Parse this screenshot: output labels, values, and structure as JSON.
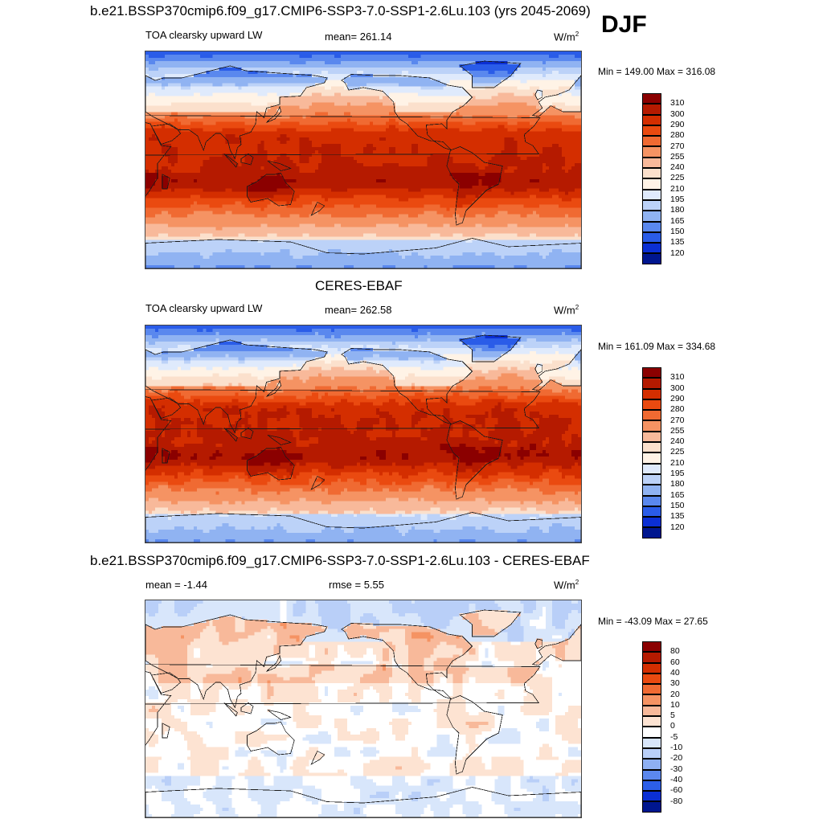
{
  "season": "DJF",
  "panels": [
    {
      "heading": "b.e21.BSSP370cmip6.f09_g17.CMIP6-SSP3-7.0-SSP1-2.6Lu.103 (yrs 2045-2069)",
      "left_label": "TOA clearsky upward LW",
      "center_label": "mean= 261.14",
      "units": "W/m",
      "units_sup": "2",
      "minmax": "Min = 149.00 Max = 316.08",
      "mean": 261.14,
      "min": 149.0,
      "max": 316.08,
      "kind": "model"
    },
    {
      "heading": "CERES-EBAF",
      "left_label": "TOA clearsky upward LW",
      "center_label": "mean= 262.58",
      "units": "W/m",
      "units_sup": "2",
      "minmax": "Min = 161.09 Max = 334.68",
      "mean": 262.58,
      "min": 161.09,
      "max": 334.68,
      "kind": "obs"
    },
    {
      "heading": "b.e21.BSSP370cmip6.f09_g17.CMIP6-SSP3-7.0-SSP1-2.6Lu.103 - CERES-EBAF",
      "left_label": "mean =  -1.44",
      "center_label": "rmse =   5.55",
      "units": "W/m",
      "units_sup": "2",
      "minmax": "Min = -43.09 Max =  27.65",
      "mean": -1.44,
      "rmse": 5.55,
      "min": -43.09,
      "max": 27.65,
      "kind": "diff"
    }
  ],
  "colorbars": {
    "abs_levels": [
      "310",
      "300",
      "290",
      "280",
      "270",
      "255",
      "240",
      "225",
      "210",
      "195",
      "180",
      "165",
      "150",
      "135",
      "120"
    ],
    "abs_colors": [
      "#8b0000",
      "#b51a00",
      "#d42e00",
      "#ea4a10",
      "#f06a32",
      "#f59363",
      "#f8b99a",
      "#fbe0cc",
      "#fff3e6",
      "#dfeafc",
      "#bcd2f8",
      "#90b3f2",
      "#5a88ee",
      "#2a5ce8",
      "#0b2fd4",
      "#00168f"
    ],
    "diff_levels": [
      "80",
      "60",
      "40",
      "30",
      "20",
      "10",
      "5",
      "0",
      "-5",
      "-10",
      "-20",
      "-30",
      "-40",
      "-60",
      "-80"
    ],
    "diff_colors": [
      "#8b0000",
      "#b51a00",
      "#d42e00",
      "#ea4a10",
      "#f06a32",
      "#f59363",
      "#f8b99a",
      "#fde3d2",
      "#ffffff",
      "#d8e6fb",
      "#b9cff8",
      "#8eb0f3",
      "#5c88ee",
      "#2c5ee8",
      "#0b2fd4",
      "#00168f"
    ]
  },
  "chart_data": [
    {
      "type": "heatmap",
      "title": "b.e21.BSSP370cmip6.f09_g17.CMIP6-SSP3-7.0-SSP1-2.6Lu.103 (yrs 2045-2069)",
      "variable": "TOA clearsky upward LW",
      "units": "W/m2",
      "mean": 261.14,
      "min": 149.0,
      "max": 316.08,
      "levels": [
        120,
        135,
        150,
        165,
        180,
        195,
        210,
        225,
        240,
        255,
        270,
        280,
        290,
        300,
        310
      ]
    },
    {
      "type": "heatmap",
      "title": "CERES-EBAF",
      "variable": "TOA clearsky upward LW",
      "units": "W/m2",
      "mean": 262.58,
      "min": 161.09,
      "max": 334.68,
      "levels": [
        120,
        135,
        150,
        165,
        180,
        195,
        210,
        225,
        240,
        255,
        270,
        280,
        290,
        300,
        310
      ]
    },
    {
      "type": "heatmap",
      "title": "b.e21.BSSP370cmip6.f09_g17.CMIP6-SSP3-7.0-SSP1-2.6Lu.103 - CERES-EBAF",
      "units": "W/m2",
      "mean": -1.44,
      "rmse": 5.55,
      "min": -43.09,
      "max": 27.65,
      "levels": [
        -80,
        -60,
        -40,
        -30,
        -20,
        -10,
        -5,
        0,
        5,
        10,
        20,
        30,
        40,
        60,
        80
      ]
    }
  ]
}
